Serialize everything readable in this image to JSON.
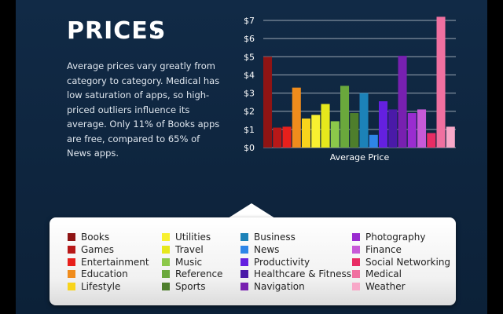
{
  "header": {
    "title": "PRICES",
    "description": "Average prices vary greatly from category to category. Medical has low saturation of apps, so high-priced outliers influence its average. Only 11% of Books apps are free, compared to 65% of News apps."
  },
  "icons": {
    "title_arrow": "triangle-right-icon"
  },
  "chart_data": {
    "type": "bar",
    "xlabel": "Average Price",
    "ylabel": "",
    "ylim": [
      0,
      7
    ],
    "yticks": [
      "$0",
      "$1",
      "$2",
      "$3",
      "$4",
      "$5",
      "$6",
      "$7"
    ],
    "grid": true,
    "categories": [
      "Books",
      "Games",
      "Entertainment",
      "Education",
      "Lifestyle",
      "Utilities",
      "Travel",
      "Music",
      "Reference",
      "Sports",
      "Business",
      "News",
      "Productivity",
      "Healthcare & Fitness",
      "Navigation",
      "Photography",
      "Finance",
      "Social Networking",
      "Medical",
      "Weather"
    ],
    "values": [
      5.0,
      1.1,
      1.15,
      3.3,
      1.6,
      1.8,
      2.4,
      1.45,
      3.4,
      1.9,
      3.0,
      0.7,
      2.55,
      2.1,
      5.05,
      1.9,
      2.1,
      0.8,
      7.2,
      1.15
    ],
    "colors": [
      "#8f1414",
      "#b81818",
      "#e8201c",
      "#f08c1c",
      "#f8d41c",
      "#f8f030",
      "#e6e81c",
      "#8cc84a",
      "#6aa83c",
      "#4e7e2c",
      "#1c82b8",
      "#2e86e8",
      "#6420e0",
      "#4a1aa8",
      "#7820b0",
      "#9a2cd0",
      "#c85ad8",
      "#e82c64",
      "#f070a0",
      "#f8a8c8"
    ]
  },
  "legend": {
    "items": [
      {
        "label": "Books",
        "color": "#8f1414"
      },
      {
        "label": "Games",
        "color": "#b81818"
      },
      {
        "label": "Entertainment",
        "color": "#e8201c"
      },
      {
        "label": "Education",
        "color": "#f08c1c"
      },
      {
        "label": "Lifestyle",
        "color": "#f8d41c"
      },
      {
        "label": "Utilities",
        "color": "#f8f030"
      },
      {
        "label": "Travel",
        "color": "#e6e81c"
      },
      {
        "label": "Music",
        "color": "#8cc84a"
      },
      {
        "label": "Reference",
        "color": "#6aa83c"
      },
      {
        "label": "Sports",
        "color": "#4e7e2c"
      },
      {
        "label": "Business",
        "color": "#1c82b8"
      },
      {
        "label": "News",
        "color": "#2e86e8"
      },
      {
        "label": "Productivity",
        "color": "#6420e0"
      },
      {
        "label": "Healthcare & Fitness",
        "color": "#4a1aa8"
      },
      {
        "label": "Navigation",
        "color": "#7820b0"
      },
      {
        "label": "Photography",
        "color": "#9a2cd0"
      },
      {
        "label": "Finance",
        "color": "#c85ad8"
      },
      {
        "label": "Social Networking",
        "color": "#e82c64"
      },
      {
        "label": "Medical",
        "color": "#f070a0"
      },
      {
        "label": "Weather",
        "color": "#f8a8c8"
      }
    ]
  }
}
